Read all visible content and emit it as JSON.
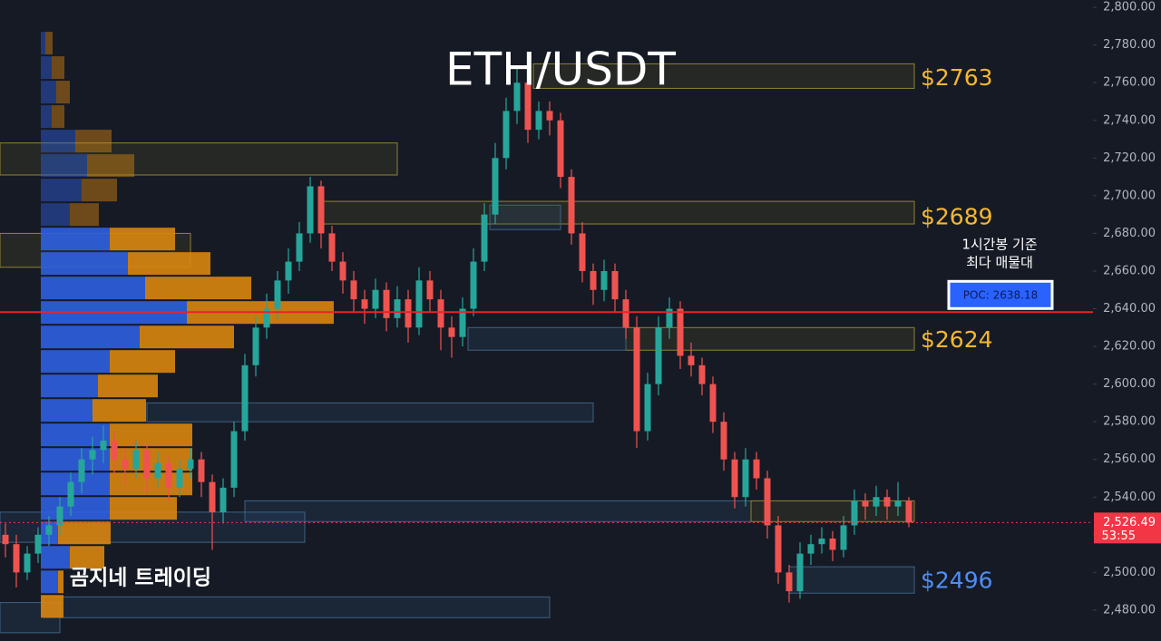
{
  "chart_data": {
    "type": "candlestick",
    "title": "ETH/USDT",
    "watermark": "곰지네 트레이딩",
    "ylim": [
      2463.6,
      2803.9
    ],
    "yticks": [
      {
        "value": 2480,
        "label": "2,480.00"
      },
      {
        "value": 2500,
        "label": "2,500.00"
      },
      {
        "value": 2520,
        "label": "2,520.00"
      },
      {
        "value": 2540,
        "label": "2,540.00"
      },
      {
        "value": 2560,
        "label": "2,560.00"
      },
      {
        "value": 2580,
        "label": "2,580.00"
      },
      {
        "value": 2600,
        "label": "2,600.00"
      },
      {
        "value": 2620,
        "label": "2,620.00"
      },
      {
        "value": 2640,
        "label": "2,640.00"
      },
      {
        "value": 2660,
        "label": "2,660.00"
      },
      {
        "value": 2680,
        "label": "2,680.00"
      },
      {
        "value": 2700,
        "label": "2,700.00"
      },
      {
        "value": 2720,
        "label": "2,720.00"
      },
      {
        "value": 2740,
        "label": "2,740.00"
      },
      {
        "value": 2760,
        "label": "2,760.00"
      },
      {
        "value": 2780,
        "label": "2,780.00"
      },
      {
        "value": 2800,
        "label": "2,800.00"
      }
    ],
    "grid": false,
    "up_color": "#26a69a",
    "down_color": "#ef5350",
    "candles": [
      [
        2520,
        2526,
        2508,
        2515
      ],
      [
        2515,
        2520,
        2492,
        2500
      ],
      [
        2500,
        2514,
        2496,
        2510
      ],
      [
        2510,
        2524,
        2505,
        2520
      ],
      [
        2520,
        2530,
        2514,
        2525
      ],
      [
        2525,
        2540,
        2520,
        2535
      ],
      [
        2535,
        2553,
        2530,
        2548
      ],
      [
        2548,
        2566,
        2542,
        2560
      ],
      [
        2560,
        2572,
        2552,
        2565
      ],
      [
        2565,
        2578,
        2558,
        2570
      ],
      [
        2570,
        2575,
        2552,
        2560
      ],
      [
        2560,
        2566,
        2546,
        2555
      ],
      [
        2555,
        2570,
        2550,
        2565
      ],
      [
        2565,
        2568,
        2542,
        2550
      ],
      [
        2550,
        2564,
        2545,
        2558
      ],
      [
        2558,
        2562,
        2538,
        2545
      ],
      [
        2545,
        2560,
        2540,
        2555
      ],
      [
        2555,
        2566,
        2550,
        2560
      ],
      [
        2560,
        2564,
        2540,
        2548
      ],
      [
        2548,
        2552,
        2512,
        2532
      ],
      [
        2532,
        2550,
        2526,
        2545
      ],
      [
        2545,
        2580,
        2540,
        2575
      ],
      [
        2575,
        2616,
        2570,
        2610
      ],
      [
        2610,
        2636,
        2604,
        2630
      ],
      [
        2630,
        2648,
        2624,
        2640
      ],
      [
        2640,
        2660,
        2634,
        2655
      ],
      [
        2655,
        2672,
        2648,
        2665
      ],
      [
        2665,
        2686,
        2660,
        2680
      ],
      [
        2680,
        2710,
        2675,
        2705
      ],
      [
        2705,
        2708,
        2672,
        2680
      ],
      [
        2680,
        2684,
        2660,
        2665
      ],
      [
        2665,
        2670,
        2648,
        2655
      ],
      [
        2655,
        2660,
        2638,
        2645
      ],
      [
        2645,
        2650,
        2632,
        2640
      ],
      [
        2640,
        2656,
        2635,
        2650
      ],
      [
        2650,
        2654,
        2628,
        2635
      ],
      [
        2635,
        2652,
        2630,
        2645
      ],
      [
        2645,
        2650,
        2622,
        2630
      ],
      [
        2630,
        2662,
        2626,
        2655
      ],
      [
        2655,
        2660,
        2638,
        2645
      ],
      [
        2645,
        2650,
        2618,
        2630
      ],
      [
        2630,
        2636,
        2614,
        2625
      ],
      [
        2625,
        2646,
        2620,
        2640
      ],
      [
        2640,
        2672,
        2636,
        2665
      ],
      [
        2665,
        2696,
        2660,
        2690
      ],
      [
        2690,
        2728,
        2685,
        2720
      ],
      [
        2720,
        2752,
        2714,
        2745
      ],
      [
        2745,
        2768,
        2738,
        2760
      ],
      [
        2760,
        2764,
        2728,
        2735
      ],
      [
        2735,
        2750,
        2730,
        2745
      ],
      [
        2745,
        2750,
        2732,
        2740
      ],
      [
        2740,
        2744,
        2704,
        2710
      ],
      [
        2710,
        2714,
        2674,
        2680
      ],
      [
        2680,
        2686,
        2654,
        2660
      ],
      [
        2660,
        2664,
        2642,
        2650
      ],
      [
        2650,
        2666,
        2644,
        2660
      ],
      [
        2660,
        2664,
        2638,
        2645
      ],
      [
        2645,
        2650,
        2624,
        2630
      ],
      [
        2630,
        2636,
        2566,
        2575
      ],
      [
        2575,
        2606,
        2570,
        2600
      ],
      [
        2600,
        2636,
        2594,
        2630
      ],
      [
        2630,
        2646,
        2624,
        2640
      ],
      [
        2640,
        2644,
        2608,
        2615
      ],
      [
        2615,
        2622,
        2604,
        2610
      ],
      [
        2610,
        2614,
        2594,
        2600
      ],
      [
        2600,
        2604,
        2574,
        2580
      ],
      [
        2580,
        2585,
        2554,
        2560
      ],
      [
        2560,
        2564,
        2534,
        2540
      ],
      [
        2540,
        2566,
        2535,
        2560
      ],
      [
        2560,
        2564,
        2544,
        2550
      ],
      [
        2550,
        2554,
        2518,
        2525
      ],
      [
        2525,
        2530,
        2494,
        2500
      ],
      [
        2500,
        2504,
        2484,
        2490
      ],
      [
        2490,
        2516,
        2486,
        2510
      ],
      [
        2510,
        2520,
        2504,
        2515
      ],
      [
        2515,
        2524,
        2510,
        2518
      ],
      [
        2518,
        2522,
        2506,
        2512
      ],
      [
        2512,
        2530,
        2508,
        2525
      ],
      [
        2525,
        2544,
        2520,
        2538
      ],
      [
        2538,
        2542,
        2528,
        2535
      ],
      [
        2535,
        2546,
        2530,
        2540
      ],
      [
        2540,
        2544,
        2528,
        2535
      ],
      [
        2535,
        2548,
        2530,
        2538
      ],
      [
        2538,
        2540,
        2524,
        2526.49
      ]
    ],
    "volume_profile": {
      "prices": [
        2781,
        2768,
        2755,
        2742,
        2729,
        2716,
        2703,
        2690,
        2677,
        2664,
        2651,
        2638,
        2625,
        2612,
        2599,
        2586,
        2573,
        2560,
        2547,
        2534,
        2521,
        2508,
        2495,
        2482
      ],
      "buy": [
        5,
        12,
        17,
        12,
        38,
        51,
        45,
        32,
        76,
        96,
        115,
        161,
        109,
        76,
        63,
        57,
        76,
        76,
        76,
        76,
        19,
        32,
        19,
        0
      ],
      "sell": [
        8,
        14,
        15,
        14,
        40,
        52,
        39,
        32,
        72,
        91,
        117,
        162,
        104,
        72,
        66,
        59,
        91,
        91,
        91,
        74,
        58,
        38,
        6,
        25
      ],
      "buy_color": "#2f5fe0",
      "sell_color": "#d9860f"
    },
    "zones": [
      {
        "top": 2770,
        "bottom": 2757,
        "from": 48.5,
        "to": 83.5,
        "kind": "supply"
      },
      {
        "top": 2728,
        "bottom": 2711,
        "from": -0.5,
        "to": 36,
        "kind": "supply"
      },
      {
        "top": 2697,
        "bottom": 2685,
        "from": 29,
        "to": 83.5,
        "kind": "supply"
      },
      {
        "top": 2680,
        "bottom": 2662,
        "from": -0.5,
        "to": 17,
        "kind": "supply"
      },
      {
        "top": 2630,
        "bottom": 2618,
        "from": 57,
        "to": 83.5,
        "kind": "supply"
      },
      {
        "top": 2695,
        "bottom": 2682,
        "from": 44.5,
        "to": 51,
        "kind": "demand"
      },
      {
        "top": 2630,
        "bottom": 2618,
        "from": 42.5,
        "to": 57,
        "kind": "demand"
      },
      {
        "top": 2590,
        "bottom": 2580,
        "from": 13,
        "to": 54,
        "kind": "demand"
      },
      {
        "top": 2538,
        "bottom": 2527,
        "from": 22,
        "to": 68.5,
        "kind": "demand"
      },
      {
        "top": 2532,
        "bottom": 2516,
        "from": -0.5,
        "to": 27.5,
        "kind": "demand"
      },
      {
        "top": 2538,
        "bottom": 2527,
        "from": 68.5,
        "to": 83.5,
        "kind": "supply"
      },
      {
        "top": 2503,
        "bottom": 2489,
        "from": 72,
        "to": 83.5,
        "kind": "demand"
      },
      {
        "top": 2487,
        "bottom": 2476,
        "from": 3.5,
        "to": 50,
        "kind": "demand"
      },
      {
        "top": 2484,
        "bottom": 2468,
        "from": -0.5,
        "to": 5,
        "kind": "demand"
      }
    ],
    "level_labels": [
      {
        "value": 2763,
        "label": "$2763",
        "color": "#f5b82e"
      },
      {
        "value": 2689,
        "label": "$2689",
        "color": "#f5b82e"
      },
      {
        "value": 2624,
        "label": "$2624",
        "color": "#f5b82e"
      },
      {
        "value": 2496,
        "label": "$2496",
        "color": "#4d8ff5"
      }
    ],
    "poc": {
      "value": 2638.18,
      "label": "POC: 2638.18",
      "color": "#e8232b"
    },
    "poc_note": [
      "1시간봉 기준",
      "최다 매물대"
    ],
    "last_price": {
      "value": 2526.49,
      "label": "2,526.49",
      "color": "#f23645"
    },
    "countdown": "53:55"
  }
}
